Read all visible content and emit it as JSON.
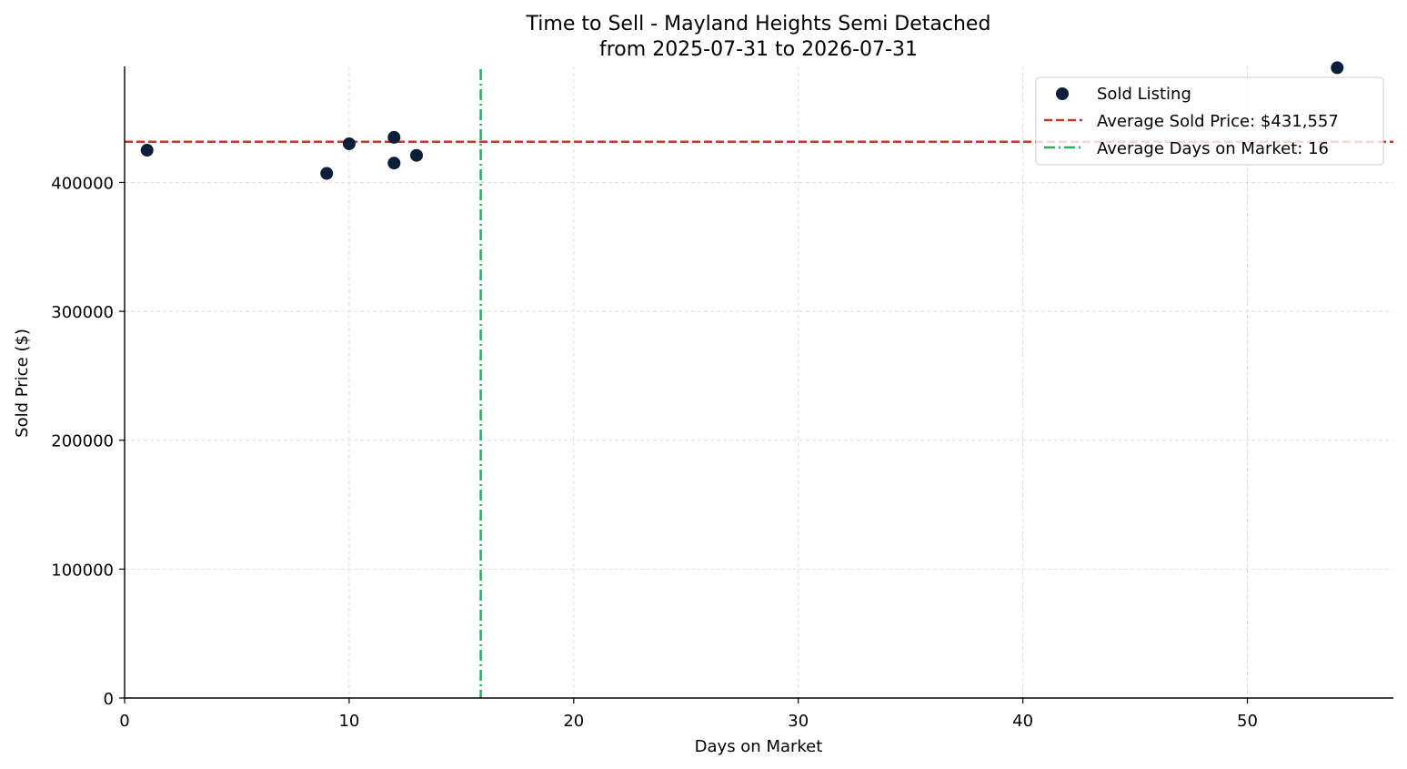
{
  "chart_data": {
    "type": "scatter",
    "title": "Time to Sell - Mayland Heights Semi Detached",
    "subtitle": "from 2025-07-31 to 2026-07-31",
    "xlabel": "Days on Market",
    "ylabel": "Sold Price ($)",
    "xlim": [
      0,
      56.5
    ],
    "ylim": [
      0,
      490000
    ],
    "x_ticks": [
      0,
      10,
      20,
      30,
      40,
      50
    ],
    "y_ticks": [
      0,
      100000,
      200000,
      300000,
      400000
    ],
    "x_tick_labels": [
      "0",
      "10",
      "20",
      "30",
      "40",
      "50"
    ],
    "y_tick_labels": [
      "0",
      "100000",
      "200000",
      "300000",
      "400000"
    ],
    "grid": true,
    "legend_position": "top-right",
    "series": [
      {
        "name": "Sold Listing",
        "color": "#0b1f3a",
        "points": [
          {
            "x": 1,
            "y": 425000
          },
          {
            "x": 9,
            "y": 407000
          },
          {
            "x": 10,
            "y": 430000
          },
          {
            "x": 12,
            "y": 435000
          },
          {
            "x": 12,
            "y": 415000
          },
          {
            "x": 13,
            "y": 421000
          },
          {
            "x": 54,
            "y": 489000
          }
        ]
      }
    ],
    "reference_lines": [
      {
        "name": "Average Sold Price: $431,557",
        "orientation": "horizontal",
        "value": 431557,
        "color": "#c0392b",
        "style": "dashed"
      },
      {
        "name": "Average Days on Market: 16",
        "orientation": "vertical",
        "value": 15.86,
        "color": "#27ae60",
        "style": "dashdot"
      }
    ]
  }
}
